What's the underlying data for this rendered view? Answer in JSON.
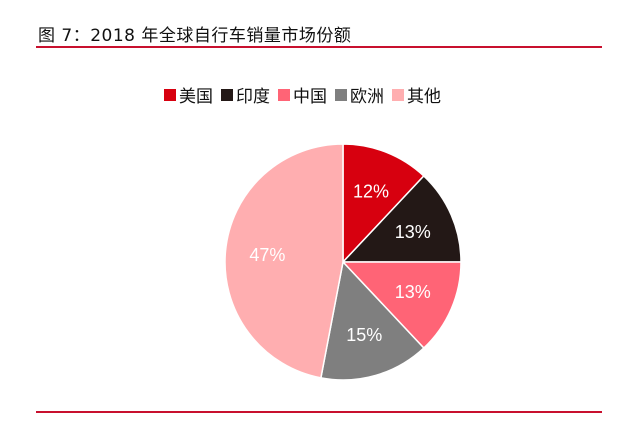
{
  "figure": {
    "title": "图 7：2018 年全球自行车销量市场份额"
  },
  "chart_data": {
    "type": "pie",
    "start_angle": "12 o'clock, clockwise",
    "slices": [
      {
        "name": "美国",
        "value": 12,
        "label": "12%",
        "color": "#d7000f",
        "label_color": "#ffffff"
      },
      {
        "name": "印度",
        "value": 13,
        "label": "13%",
        "color": "#231816",
        "label_color": "#ffffff"
      },
      {
        "name": "中国",
        "value": 13,
        "label": "13%",
        "color": "#ff6476",
        "label_color": "#ffffff"
      },
      {
        "name": "欧洲",
        "value": 15,
        "label": "15%",
        "color": "#7f7f7f",
        "label_color": "#ffffff"
      },
      {
        "name": "其他",
        "value": 47,
        "label": "47%",
        "color": "#ffaeb0",
        "label_color": "#ffffff"
      }
    ],
    "legend_position": "top"
  }
}
